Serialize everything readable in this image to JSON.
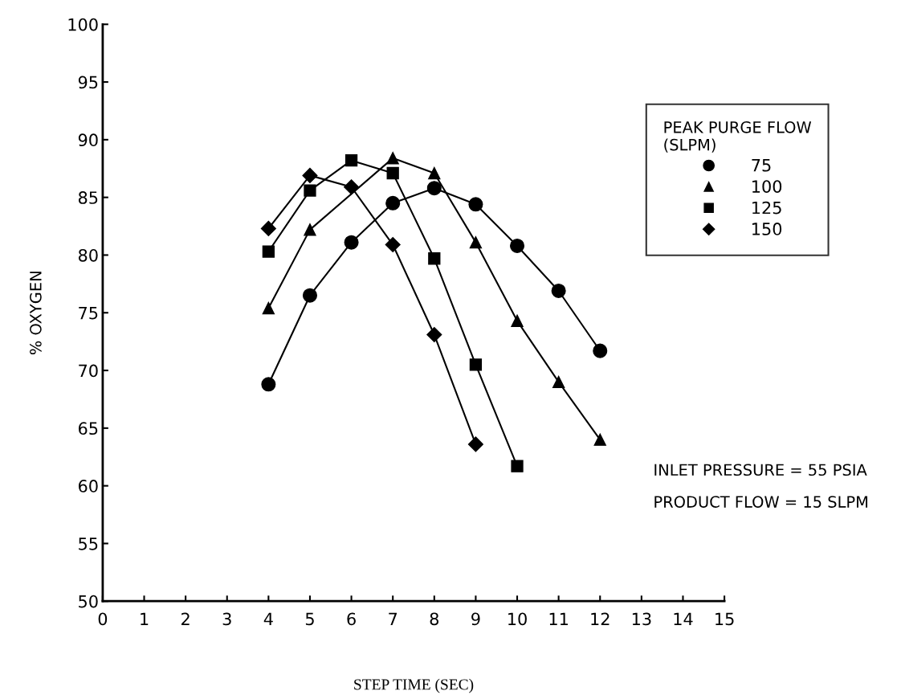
{
  "chart_data": {
    "type": "line",
    "xlabel": "STEP TIME (SEC)",
    "ylabel": "% OXYGEN",
    "legend_title": "PEAK PURGE FLOW\n(SLPM)",
    "xlim": [
      0,
      15
    ],
    "xticks": [
      0,
      1,
      2,
      3,
      4,
      5,
      6,
      7,
      8,
      9,
      10,
      11,
      12,
      13,
      14,
      15
    ],
    "ylim": [
      50,
      100
    ],
    "yticks": [
      50,
      55,
      60,
      65,
      70,
      75,
      80,
      85,
      90,
      95,
      100
    ],
    "grid": false,
    "legend": "top right",
    "line_style": "solid",
    "series": [
      {
        "name": "75",
        "color": "#000000",
        "marker": "circle",
        "x": [
          4,
          5,
          6,
          7,
          8,
          9,
          10,
          11,
          12
        ],
        "values": [
          68.8,
          76.5,
          81.1,
          84.5,
          85.8,
          84.4,
          80.8,
          76.9,
          71.7
        ]
      },
      {
        "name": "100",
        "color": "#000000",
        "marker": "triangle",
        "x": [
          4,
          5,
          7,
          8,
          9,
          10,
          11,
          12
        ],
        "values": [
          75.4,
          82.2,
          88.4,
          87.1,
          81.1,
          74.3,
          69.0,
          64.0
        ]
      },
      {
        "name": "125",
        "color": "#000000",
        "marker": "square",
        "x": [
          4,
          5,
          6,
          7,
          8,
          9,
          10
        ],
        "values": [
          80.3,
          85.6,
          88.2,
          87.1,
          79.7,
          70.5,
          61.7
        ]
      },
      {
        "name": "150",
        "color": "#000000",
        "marker": "diamond",
        "x": [
          4,
          5,
          6,
          7,
          8,
          9
        ],
        "values": [
          82.3,
          86.9,
          85.9,
          80.9,
          73.1,
          63.6
        ]
      }
    ],
    "annotations": [
      "INLET PRESSURE = 55 PSIA",
      "PRODUCT FLOW = 15 SLPM"
    ]
  }
}
